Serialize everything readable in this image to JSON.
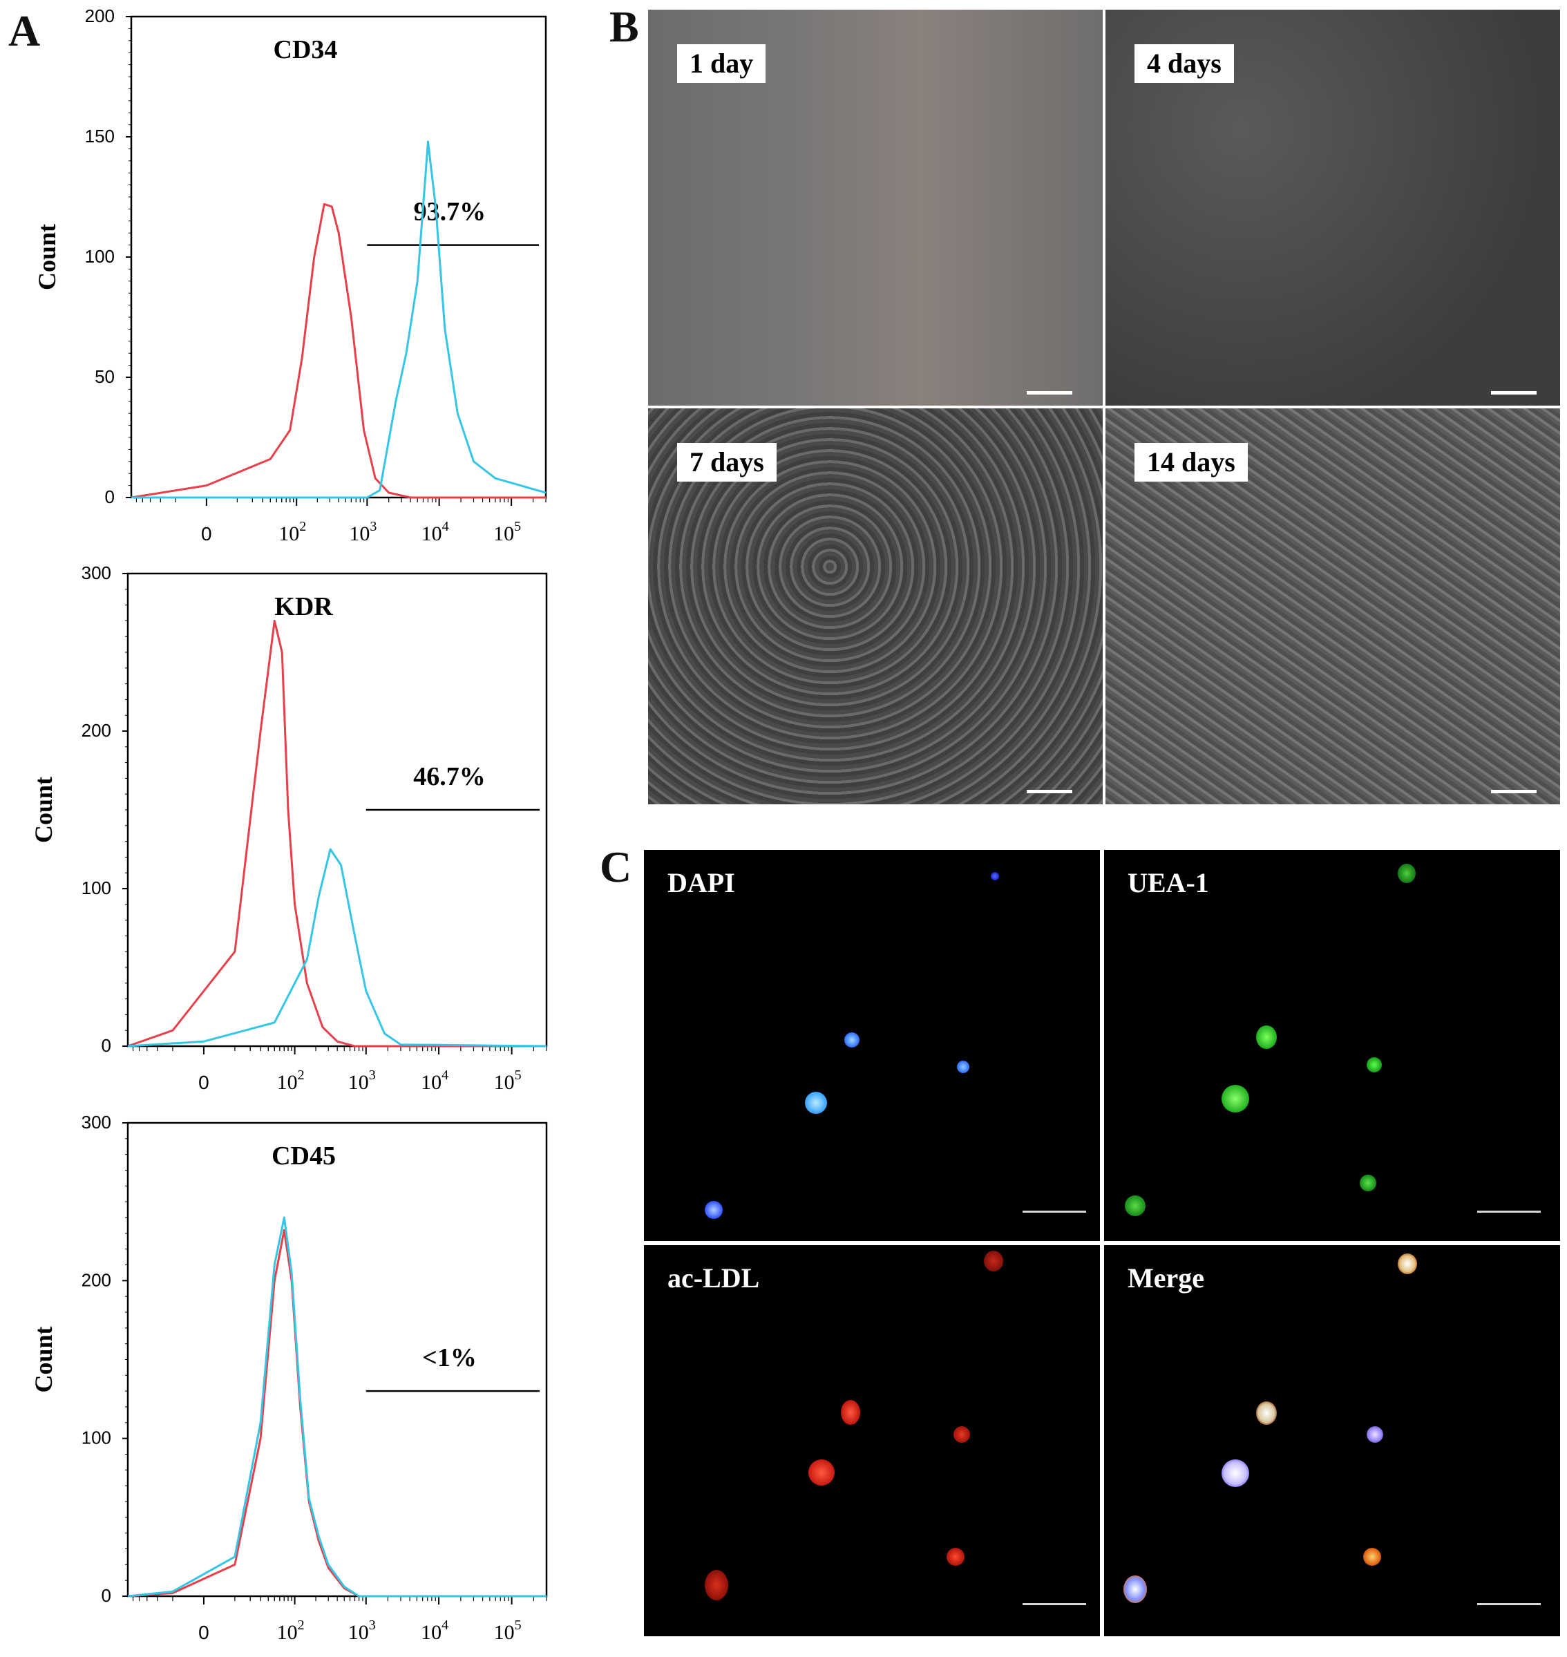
{
  "panel_labels": {
    "a": "A",
    "b": "B",
    "c": "C"
  },
  "colors": {
    "isotype": "#e8404a",
    "marker": "#35c6e6",
    "gate": "#000000"
  },
  "chart_data": [
    {
      "type": "line",
      "title": "CD34",
      "ylabel": "Count",
      "y_ticks": [
        0,
        50,
        100,
        150,
        200
      ],
      "ylim": [
        0,
        200
      ],
      "x_scale": "biexponential",
      "x_tick_labels": [
        "0",
        "10^2",
        "10^3",
        "10^4",
        "10^5"
      ],
      "gate_label": "93.7%",
      "gate_range": [
        1000,
        300000
      ],
      "gate_y": 105,
      "series": [
        {
          "color": "#e8404a",
          "x": [
            -60,
            0,
            40,
            80,
            120,
            180,
            250,
            320,
            400,
            600,
            900,
            1300,
            2000,
            4000,
            10000,
            300000
          ],
          "values": [
            0,
            5,
            16,
            28,
            58,
            100,
            122,
            121,
            110,
            75,
            28,
            8,
            2,
            0,
            0,
            0
          ]
        },
        {
          "color": "#35c6e6",
          "x": [
            -60,
            1000,
            1500,
            2500,
            3500,
            5000,
            7000,
            9000,
            12000,
            18000,
            30000,
            60000,
            300000
          ],
          "values": [
            0,
            0,
            3,
            40,
            60,
            90,
            148,
            120,
            70,
            35,
            15,
            8,
            2
          ]
        }
      ]
    },
    {
      "type": "line",
      "title": "KDR",
      "ylabel": "Count",
      "y_ticks": [
        0,
        100,
        200,
        300
      ],
      "ylim": [
        0,
        300
      ],
      "x_scale": "biexponential",
      "x_tick_labels": [
        "0",
        "10^2",
        "10^3",
        "10^4",
        "10^5"
      ],
      "gate_label": "46.7%",
      "gate_range": [
        1000,
        300000
      ],
      "gate_y": 150,
      "series": [
        {
          "color": "#e8404a",
          "x": [
            -60,
            -10,
            10,
            30,
            50,
            65,
            80,
            100,
            150,
            250,
            400,
            700,
            1000,
            300000
          ],
          "values": [
            0,
            10,
            60,
            200,
            270,
            250,
            150,
            90,
            40,
            12,
            3,
            0,
            0,
            0
          ]
        },
        {
          "color": "#35c6e6",
          "x": [
            -60,
            0,
            50,
            100,
            150,
            220,
            320,
            450,
            700,
            1000,
            1800,
            3000,
            300000
          ],
          "values": [
            0,
            3,
            15,
            40,
            55,
            95,
            125,
            115,
            70,
            35,
            8,
            1,
            0
          ]
        }
      ]
    },
    {
      "type": "line",
      "title": "CD45",
      "ylabel": "Count",
      "y_ticks": [
        0,
        100,
        200,
        300
      ],
      "ylim": [
        0,
        300
      ],
      "x_scale": "biexponential",
      "x_tick_labels": [
        "0",
        "10^2",
        "10^3",
        "10^4",
        "10^5"
      ],
      "gate_label": "<1%",
      "gate_range": [
        1000,
        300000
      ],
      "gate_y": 130,
      "series": [
        {
          "color": "#e8404a",
          "x": [
            -60,
            -10,
            10,
            30,
            50,
            70,
            90,
            120,
            160,
            220,
            300,
            500,
            800,
            300000
          ],
          "values": [
            0,
            2,
            20,
            100,
            200,
            232,
            200,
            120,
            60,
            35,
            18,
            5,
            0,
            0
          ]
        },
        {
          "color": "#35c6e6",
          "x": [
            -60,
            -10,
            10,
            30,
            50,
            70,
            90,
            120,
            160,
            220,
            300,
            500,
            800,
            300000
          ],
          "values": [
            0,
            3,
            25,
            110,
            210,
            240,
            205,
            125,
            62,
            38,
            20,
            6,
            0,
            0
          ]
        }
      ]
    }
  ],
  "culture_images": [
    {
      "label": "1 day"
    },
    {
      "label": "4 days"
    },
    {
      "label": "7 days"
    },
    {
      "label": "14 days"
    }
  ],
  "fluorescence_images": [
    {
      "label": "DAPI",
      "stain_color": "#3a7bff"
    },
    {
      "label": "UEA-1",
      "stain_color": "#37d23a"
    },
    {
      "label": "ac-LDL",
      "stain_color": "#e0231c"
    },
    {
      "label": "Merge",
      "stain_color": "#f0c8a8"
    }
  ]
}
